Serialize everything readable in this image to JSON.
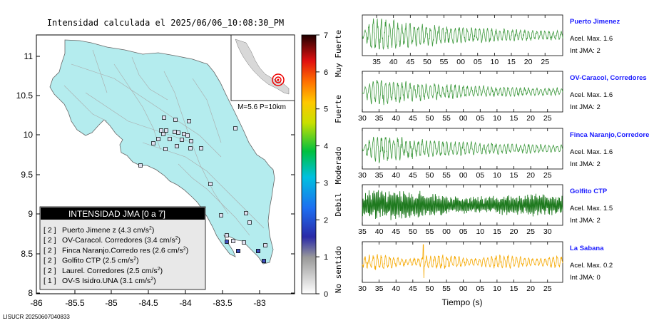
{
  "title": "Intensidad calculada el 2025/06/06_10:08:30_PM",
  "footer_id": "LISUCR 20250607040833",
  "map": {
    "lat_ticks": [
      "11",
      "10.5",
      "10",
      "9.5",
      "9",
      "8.5",
      "8"
    ],
    "lon_ticks": [
      "-86",
      "-85.5",
      "-85",
      "-84.5",
      "-84",
      "-83.5",
      "-83"
    ],
    "inset_text": "M=5.6 P=10km",
    "land_color": "#b4ecee"
  },
  "legend": {
    "title": "INTENSIDAD JMA [0 a 7]",
    "items": [
      {
        "level": "[ 2 ]",
        "name": "Puerto Jimene z",
        "value": "(4.3 cm/s",
        "sup": "2",
        "close": ")"
      },
      {
        "level": "[ 2 ]",
        "name": "OV-Caracol. Corredores",
        "value": "(3.4 cm/s",
        "sup": "2",
        "close": ")"
      },
      {
        "level": "[ 2 ]",
        "name": "Finca Naranjo.Corredo res",
        "value": "(2.6 cm/s",
        "sup": "2",
        "close": ")"
      },
      {
        "level": "[ 2 ]",
        "name": "Golfito CTP",
        "value": "(2.5 cm/s",
        "sup": "2",
        "close": ")"
      },
      {
        "level": "[ 2 ]",
        "name": "Laurel. Corredores",
        "value": "(2.5 cm/s",
        "sup": "2",
        "close": ")"
      },
      {
        "level": "[ 1 ]",
        "name": "OV-S Isidro.UNA",
        "value": "(3.1 cm/s",
        "sup": "2",
        "close": ")"
      }
    ]
  },
  "colorbar": {
    "ticks": [
      "7",
      "6",
      "5",
      "4",
      "3",
      "2",
      "1",
      "0"
    ],
    "labels": [
      "Muy Fuerte",
      "Fuerte",
      "Moderado",
      "Debil",
      "No sentido"
    ]
  },
  "traces": {
    "xlabel": "Tiempo (s)",
    "stations": [
      {
        "name": "Puerto Jimenez",
        "accel": "Acel. Max. 1.6",
        "jma": "Int JMA: 2",
        "color": "#3f9a3f",
        "ticks": [
          "35",
          "40",
          "45",
          "50",
          "55",
          "00",
          "05",
          "10",
          "15",
          "20",
          "25"
        ],
        "amp": 1.0
      },
      {
        "name": "OV-Caracol, Corredores",
        "accel": "Acel. Max. 1.6",
        "jma": "Int JMA: 2",
        "color": "#3f9a3f",
        "ticks": [
          "30",
          "35",
          "40",
          "45",
          "50",
          "55",
          "00",
          "05",
          "10",
          "15",
          "20",
          "25"
        ],
        "amp": 0.8
      },
      {
        "name": "Finca Naranjo,Corredores",
        "accel": "Acel. Max. 1.6",
        "jma": "Int JMA: 2",
        "color": "#3f9a3f",
        "ticks": [
          "30",
          "35",
          "40",
          "45",
          "50",
          "55",
          "00",
          "05",
          "10",
          "15",
          "20",
          "25"
        ],
        "amp": 0.85
      },
      {
        "name": "Golfito CTP",
        "accel": "Acel. Max. 1.5",
        "jma": "Int JMA: 2",
        "color": "#1f7a1f",
        "ticks": [
          "35",
          "40",
          "45",
          "50",
          "55",
          "00",
          "05",
          "10",
          "15",
          "20",
          "25",
          "30"
        ],
        "amp": 0.9
      },
      {
        "name": "La Sabana",
        "accel": "Acel. Max. 0.2",
        "jma": "Int JMA: 0",
        "color": "#f5a800",
        "ticks": [
          "30",
          "35",
          "40",
          "45",
          "50",
          "55",
          "00",
          "05",
          "10",
          "15",
          "20",
          "25"
        ],
        "amp": 0.75
      }
    ]
  }
}
